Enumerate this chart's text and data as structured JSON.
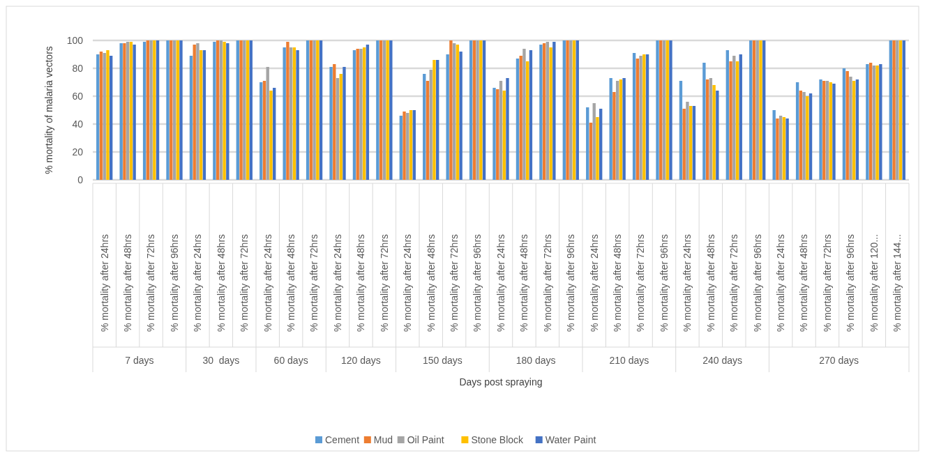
{
  "chart_data": {
    "type": "bar",
    "xlabel": "Days post spraying",
    "ylabel": "% mortality of malaria vectors",
    "categories": [
      "% mortality after 24hrs",
      "% mortality after 48hrs",
      "% mortality after 72hrs",
      "% mortality after 96hrs",
      "% mortality after 24hrs",
      "% mortality after 48hrs",
      "% mortality after 72hrs",
      "% mortality after 24hrs",
      "% mortality after 48hrs",
      "% mortality after 72hrs",
      "% mortality after 24hrs",
      "% mortality after 48hrs",
      "% mortality after 72hrs",
      "% mortality after 24hrs",
      "% mortality after 48hrs",
      "% mortality after 72hrs",
      "% mortality after 96hrs",
      "% mortality after 24hrs",
      "% mortality after 48hrs",
      "% mortality after 72hrs",
      "% mortality after 96hrs",
      "% mortality after 24hrs",
      "% mortality after 48hrs",
      "% mortality after 72hrs",
      "% mortality after 96hrs",
      "% mortality after 24hrs",
      "% mortality after 48hrs",
      "% mortality after 72hrs",
      "% mortality after 96hrs",
      "% mortality after 24hrs",
      "% mortality after 48hrs",
      "% mortality after 72hrs",
      "% mortality after 96hrs",
      "% mortality after 120...",
      "% mortality after 144..."
    ],
    "annotations": [
      "7 days",
      "30  days",
      "60 days",
      "120 days",
      "150 days",
      "180 days",
      "210 days",
      "240 days",
      "270 days"
    ],
    "series": [
      {
        "name": "Cement",
        "color": "#5b9bd5",
        "values": [
          90,
          98,
          99,
          100,
          89,
          99,
          100,
          70,
          95,
          100,
          81,
          93,
          100,
          46,
          76,
          90,
          100,
          66,
          87,
          97,
          100,
          52,
          73,
          91,
          100,
          71,
          84,
          93,
          100,
          50,
          70,
          72,
          80,
          83,
          100
        ]
      },
      {
        "name": "Mud",
        "color": "#ed7d31",
        "values": [
          92,
          98,
          100,
          100,
          97,
          100,
          100,
          71,
          99,
          100,
          83,
          94,
          100,
          49,
          71,
          100,
          100,
          65,
          89,
          98,
          100,
          41,
          63,
          87,
          100,
          51,
          72,
          85,
          100,
          44,
          64,
          71,
          78,
          84,
          100
        ]
      },
      {
        "name": "Oil Paint",
        "color": "#a5a5a5",
        "values": [
          91,
          99,
          100,
          100,
          98,
          100,
          100,
          81,
          95,
          100,
          73,
          94,
          100,
          48,
          79,
          98,
          100,
          71,
          94,
          99,
          100,
          55,
          71,
          89,
          100,
          56,
          73,
          89,
          100,
          46,
          63,
          71,
          74,
          82,
          100
        ]
      },
      {
        "name": "Stone Block",
        "color": "#ffc000",
        "values": [
          93,
          99,
          100,
          100,
          93,
          99,
          100,
          64,
          95,
          100,
          76,
          95,
          100,
          50,
          86,
          97,
          100,
          64,
          85,
          95,
          100,
          45,
          72,
          90,
          100,
          53,
          68,
          85,
          100,
          45,
          60,
          70,
          71,
          82,
          100
        ]
      },
      {
        "name": "Water Paint",
        "color": "#4472c4",
        "values": [
          89,
          97,
          100,
          100,
          93,
          98,
          100,
          66,
          93,
          100,
          81,
          97,
          100,
          50,
          86,
          92,
          100,
          73,
          93,
          99,
          100,
          51,
          73,
          90,
          100,
          53,
          64,
          90,
          100,
          44,
          62,
          69,
          72,
          83,
          100
        ]
      }
    ],
    "ylim": [
      0,
      100
    ],
    "yticks": [
      0,
      20,
      40,
      60,
      80,
      100
    ],
    "grid": "y",
    "legend": "bottom"
  }
}
